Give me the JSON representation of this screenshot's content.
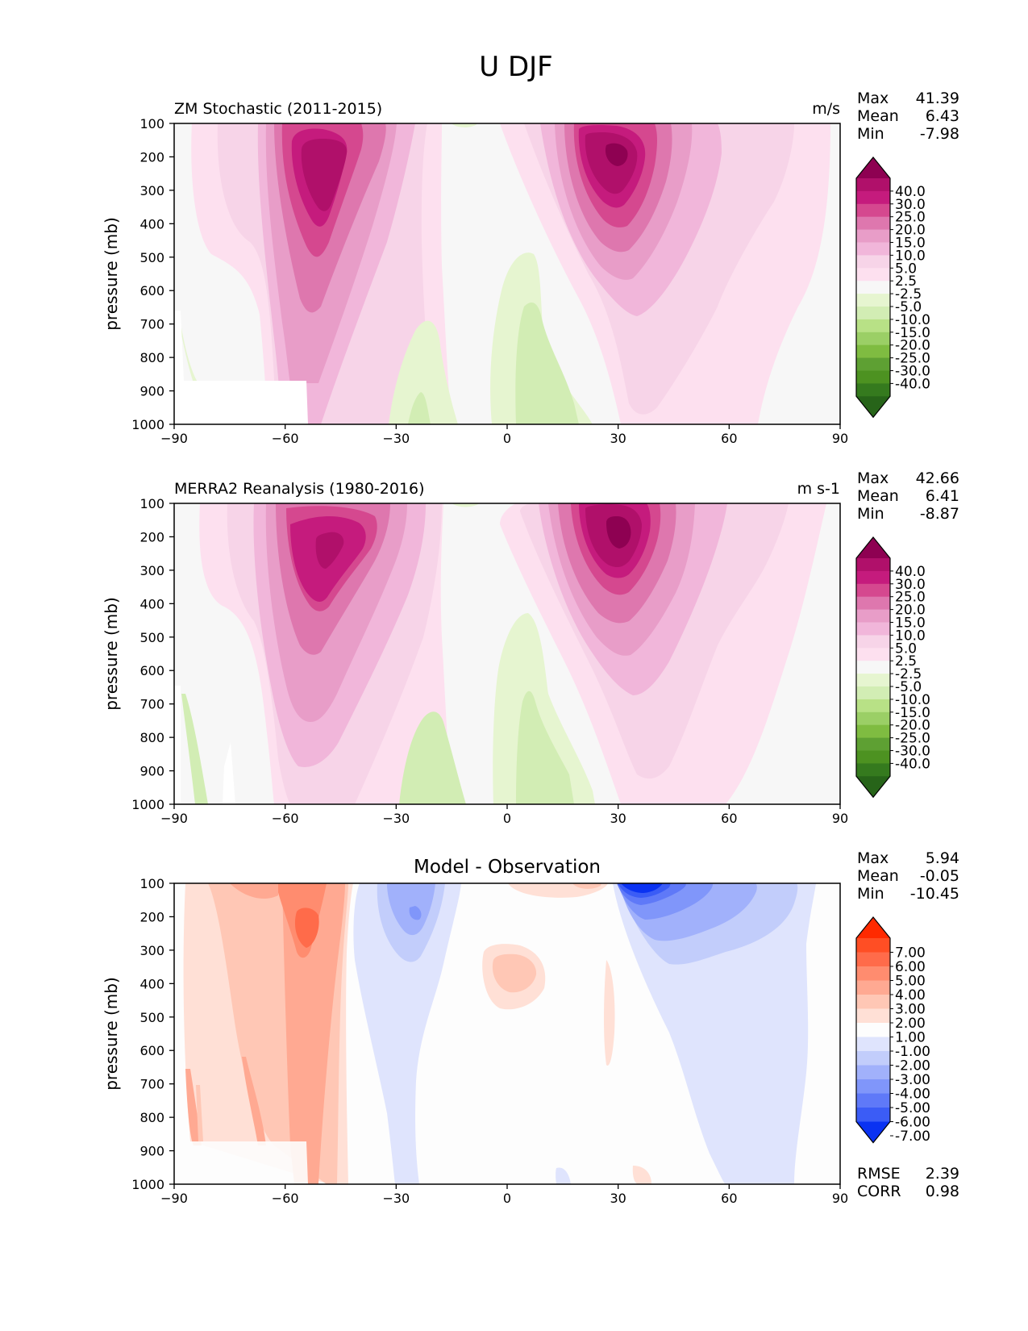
{
  "figure": {
    "title": "U DJF"
  },
  "chart_data": [
    {
      "type": "contour",
      "title": "ZM Stochastic (2011-2015)",
      "units": "m/s",
      "ylabel": "pressure (mb)",
      "xlabel": "",
      "x_ticks": [
        -90,
        -60,
        -30,
        0,
        30,
        60,
        90
      ],
      "y_ticks": [
        100,
        200,
        300,
        400,
        500,
        600,
        700,
        800,
        900,
        1000
      ],
      "xlim": [
        -90,
        90
      ],
      "ylim": [
        1000,
        100
      ],
      "stats": [
        {
          "label": "Max",
          "value": "41.39"
        },
        {
          "label": "Mean",
          "value": "6.43"
        },
        {
          "label": "Min",
          "value": "-7.98"
        }
      ],
      "colorbar_labels": [
        "40.0",
        "30.0",
        "25.0",
        "20.0",
        "15.0",
        "10.0",
        "5.0",
        "2.5",
        "-2.5",
        "-5.0",
        "-10.0",
        "-15.0",
        "-20.0",
        "-25.0",
        "-30.0",
        "-40.0"
      ],
      "colorbar_colors": [
        "#8e0152",
        "#b0106a",
        "#c51b7d",
        "#d5488f",
        "#de77ae",
        "#e89dc8",
        "#f1b6da",
        "#f7d4e8",
        "#fde0ef",
        "#f7f7f7",
        "#e6f5d0",
        "#d2edb4",
        "#b8e186",
        "#9bcf66",
        "#7fbc41",
        "#5ea033",
        "#4d9221",
        "#357a1e",
        "#276419"
      ]
    },
    {
      "type": "contour",
      "title": "MERRA2 Reanalysis (1980-2016)",
      "units": "m s-1",
      "ylabel": "pressure (mb)",
      "xlabel": "",
      "x_ticks": [
        -90,
        -60,
        -30,
        0,
        30,
        60,
        90
      ],
      "y_ticks": [
        100,
        200,
        300,
        400,
        500,
        600,
        700,
        800,
        900,
        1000
      ],
      "xlim": [
        -90,
        90
      ],
      "ylim": [
        1000,
        100
      ],
      "stats": [
        {
          "label": "Max",
          "value": "42.66"
        },
        {
          "label": "Mean",
          "value": "6.41"
        },
        {
          "label": "Min",
          "value": "-8.87"
        }
      ],
      "colorbar_labels": [
        "40.0",
        "30.0",
        "25.0",
        "20.0",
        "15.0",
        "10.0",
        "5.0",
        "2.5",
        "-2.5",
        "-5.0",
        "-10.0",
        "-15.0",
        "-20.0",
        "-25.0",
        "-30.0",
        "-40.0"
      ],
      "colorbar_colors": [
        "#8e0152",
        "#b0106a",
        "#c51b7d",
        "#d5488f",
        "#de77ae",
        "#e89dc8",
        "#f1b6da",
        "#f7d4e8",
        "#fde0ef",
        "#f7f7f7",
        "#e6f5d0",
        "#d2edb4",
        "#b8e186",
        "#9bcf66",
        "#7fbc41",
        "#5ea033",
        "#4d9221",
        "#357a1e",
        "#276419"
      ]
    },
    {
      "type": "contour",
      "title": "Model - Observation",
      "units": "",
      "ylabel": "pressure (mb)",
      "xlabel": "",
      "x_ticks": [
        -90,
        -60,
        -30,
        0,
        30,
        60,
        90
      ],
      "y_ticks": [
        100,
        200,
        300,
        400,
        500,
        600,
        700,
        800,
        900,
        1000
      ],
      "xlim": [
        -90,
        90
      ],
      "ylim": [
        1000,
        100
      ],
      "stats": [
        {
          "label": "Max",
          "value": "5.94"
        },
        {
          "label": "Mean",
          "value": "-0.05"
        },
        {
          "label": "Min",
          "value": "-10.45"
        }
      ],
      "bottom_stats": [
        {
          "label": "RMSE",
          "value": "2.39"
        },
        {
          "label": "CORR",
          "value": "0.98"
        }
      ],
      "colorbar_labels": [
        "7.00",
        "6.00",
        "5.00",
        "4.00",
        "3.00",
        "2.00",
        "1.00",
        "-1.00",
        "-2.00",
        "-3.00",
        "-4.00",
        "-5.00",
        "-6.00",
        "-7.00"
      ],
      "colorbar_colors": [
        "#ff2a00",
        "#ff4e24",
        "#ff6b4a",
        "#ff8c6f",
        "#ffa992",
        "#ffc7b5",
        "#ffe0d6",
        "#fdfdfd",
        "#dfe4fd",
        "#c2cdfb",
        "#a1b1fb",
        "#8096fa",
        "#5f79f8",
        "#3b5cf6",
        "#0a32f2"
      ]
    }
  ]
}
